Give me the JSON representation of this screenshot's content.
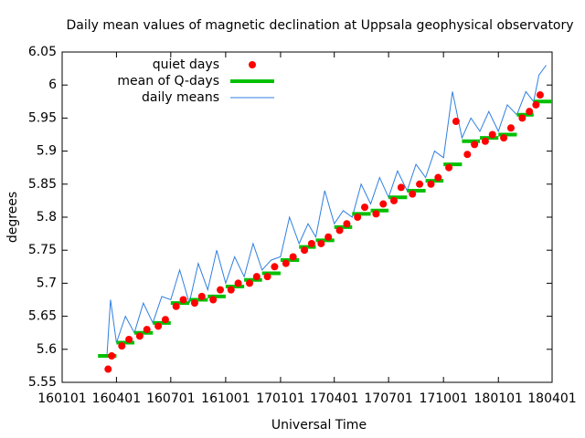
{
  "chart_data": {
    "type": "line",
    "title": "Daily mean values of magnetic declination at Uppsala geophysical observatory",
    "x_label": "Universal Time",
    "y_label": "degrees",
    "xlim": [
      "2016-01-01",
      "2018-04-01"
    ],
    "xticks": [
      {
        "value": "2016-01-01",
        "label": "160101"
      },
      {
        "value": "2016-04-01",
        "label": "160401"
      },
      {
        "value": "2016-07-01",
        "label": "160701"
      },
      {
        "value": "2016-10-01",
        "label": "161001"
      },
      {
        "value": "2017-01-01",
        "label": "170101"
      },
      {
        "value": "2017-04-01",
        "label": "170401"
      },
      {
        "value": "2017-07-01",
        "label": "170701"
      },
      {
        "value": "2017-10-01",
        "label": "171001"
      },
      {
        "value": "2018-01-01",
        "label": "180101"
      },
      {
        "value": "2018-04-01",
        "label": "180401"
      }
    ],
    "ylim": [
      5.55,
      6.05
    ],
    "yticks": [
      {
        "value": 5.55,
        "label": "5.55"
      },
      {
        "value": 5.6,
        "label": "5.6"
      },
      {
        "value": 5.65,
        "label": "5.65"
      },
      {
        "value": 5.7,
        "label": "5.7"
      },
      {
        "value": 5.75,
        "label": "5.75"
      },
      {
        "value": 5.8,
        "label": "5.8"
      },
      {
        "value": 5.85,
        "label": "5.85"
      },
      {
        "value": 5.9,
        "label": "5.9"
      },
      {
        "value": 5.95,
        "label": "5.95"
      },
      {
        "value": 6,
        "label": "6"
      },
      {
        "value": 6.05,
        "label": "6.05"
      }
    ],
    "legend": "top-left",
    "series": [
      {
        "name": "quiet days",
        "style": "points",
        "color": "#ff0000",
        "x": [
          "2016-03-18",
          "2016-03-24",
          "2016-04-10",
          "2016-04-22",
          "2016-05-10",
          "2016-05-22",
          "2016-06-10",
          "2016-06-22",
          "2016-07-10",
          "2016-07-22",
          "2016-08-10",
          "2016-08-22",
          "2016-09-10",
          "2016-09-22",
          "2016-10-10",
          "2016-10-22",
          "2016-11-10",
          "2016-11-22",
          "2016-12-10",
          "2016-12-22",
          "2017-01-10",
          "2017-01-22",
          "2017-02-10",
          "2017-02-22",
          "2017-03-10",
          "2017-03-22",
          "2017-04-10",
          "2017-04-22",
          "2017-05-10",
          "2017-05-22",
          "2017-06-10",
          "2017-06-22",
          "2017-07-10",
          "2017-07-22",
          "2017-08-10",
          "2017-08-22",
          "2017-09-10",
          "2017-09-22",
          "2017-10-10",
          "2017-10-22",
          "2017-11-10",
          "2017-11-22",
          "2017-12-10",
          "2017-12-22",
          "2018-01-10",
          "2018-01-22",
          "2018-02-10",
          "2018-02-22",
          "2018-03-05",
          "2018-03-12"
        ],
        "values": [
          5.57,
          5.59,
          5.605,
          5.615,
          5.62,
          5.63,
          5.635,
          5.645,
          5.665,
          5.675,
          5.67,
          5.68,
          5.675,
          5.69,
          5.69,
          5.7,
          5.7,
          5.71,
          5.71,
          5.725,
          5.73,
          5.74,
          5.75,
          5.76,
          5.76,
          5.77,
          5.78,
          5.79,
          5.8,
          5.815,
          5.805,
          5.82,
          5.825,
          5.845,
          5.835,
          5.85,
          5.85,
          5.86,
          5.875,
          5.945,
          5.895,
          5.91,
          5.915,
          5.925,
          5.92,
          5.935,
          5.95,
          5.96,
          5.97,
          5.985
        ]
      },
      {
        "name": "mean of Q-days",
        "style": "steps",
        "color": "#00c000",
        "x": [
          "2016-03",
          "2016-04",
          "2016-05",
          "2016-06",
          "2016-07",
          "2016-08",
          "2016-09",
          "2016-10",
          "2016-11",
          "2016-12",
          "2017-01",
          "2017-02",
          "2017-03",
          "2017-04",
          "2017-05",
          "2017-06",
          "2017-07",
          "2017-08",
          "2017-09",
          "2017-10",
          "2017-11",
          "2017-12",
          "2018-01",
          "2018-02",
          "2018-03"
        ],
        "values": [
          5.59,
          5.61,
          5.625,
          5.64,
          5.67,
          5.675,
          5.68,
          5.695,
          5.705,
          5.715,
          5.735,
          5.755,
          5.765,
          5.785,
          5.805,
          5.81,
          5.83,
          5.84,
          5.855,
          5.88,
          5.915,
          5.92,
          5.925,
          5.955,
          5.975
        ]
      },
      {
        "name": "daily means",
        "style": "line",
        "color": "#2f7fe0",
        "x": [
          "2016-03-16",
          "2016-03-22",
          "2016-04-01",
          "2016-04-16",
          "2016-05-01",
          "2016-05-16",
          "2016-06-01",
          "2016-06-16",
          "2016-07-01",
          "2016-07-16",
          "2016-08-01",
          "2016-08-16",
          "2016-09-01",
          "2016-09-16",
          "2016-10-01",
          "2016-10-16",
          "2016-11-01",
          "2016-11-16",
          "2016-12-01",
          "2016-12-16",
          "2017-01-01",
          "2017-01-16",
          "2017-02-01",
          "2017-02-16",
          "2017-03-01",
          "2017-03-16",
          "2017-04-01",
          "2017-04-16",
          "2017-05-01",
          "2017-05-16",
          "2017-06-01",
          "2017-06-16",
          "2017-07-01",
          "2017-07-16",
          "2017-08-01",
          "2017-08-16",
          "2017-09-01",
          "2017-09-16",
          "2017-10-01",
          "2017-10-16",
          "2017-11-01",
          "2017-11-16",
          "2017-12-01",
          "2017-12-16",
          "2018-01-01",
          "2018-01-16",
          "2018-02-01",
          "2018-02-16",
          "2018-03-01",
          "2018-03-10",
          "2018-03-22"
        ],
        "values": [
          5.59,
          5.675,
          5.61,
          5.65,
          5.625,
          5.67,
          5.64,
          5.68,
          5.675,
          5.72,
          5.67,
          5.73,
          5.69,
          5.75,
          5.7,
          5.74,
          5.71,
          5.76,
          5.72,
          5.735,
          5.74,
          5.8,
          5.76,
          5.79,
          5.77,
          5.84,
          5.79,
          5.81,
          5.8,
          5.85,
          5.82,
          5.86,
          5.83,
          5.87,
          5.84,
          5.88,
          5.86,
          5.9,
          5.89,
          5.99,
          5.92,
          5.95,
          5.93,
          5.96,
          5.93,
          5.97,
          5.955,
          5.99,
          5.975,
          6.015,
          6.03
        ]
      }
    ]
  }
}
